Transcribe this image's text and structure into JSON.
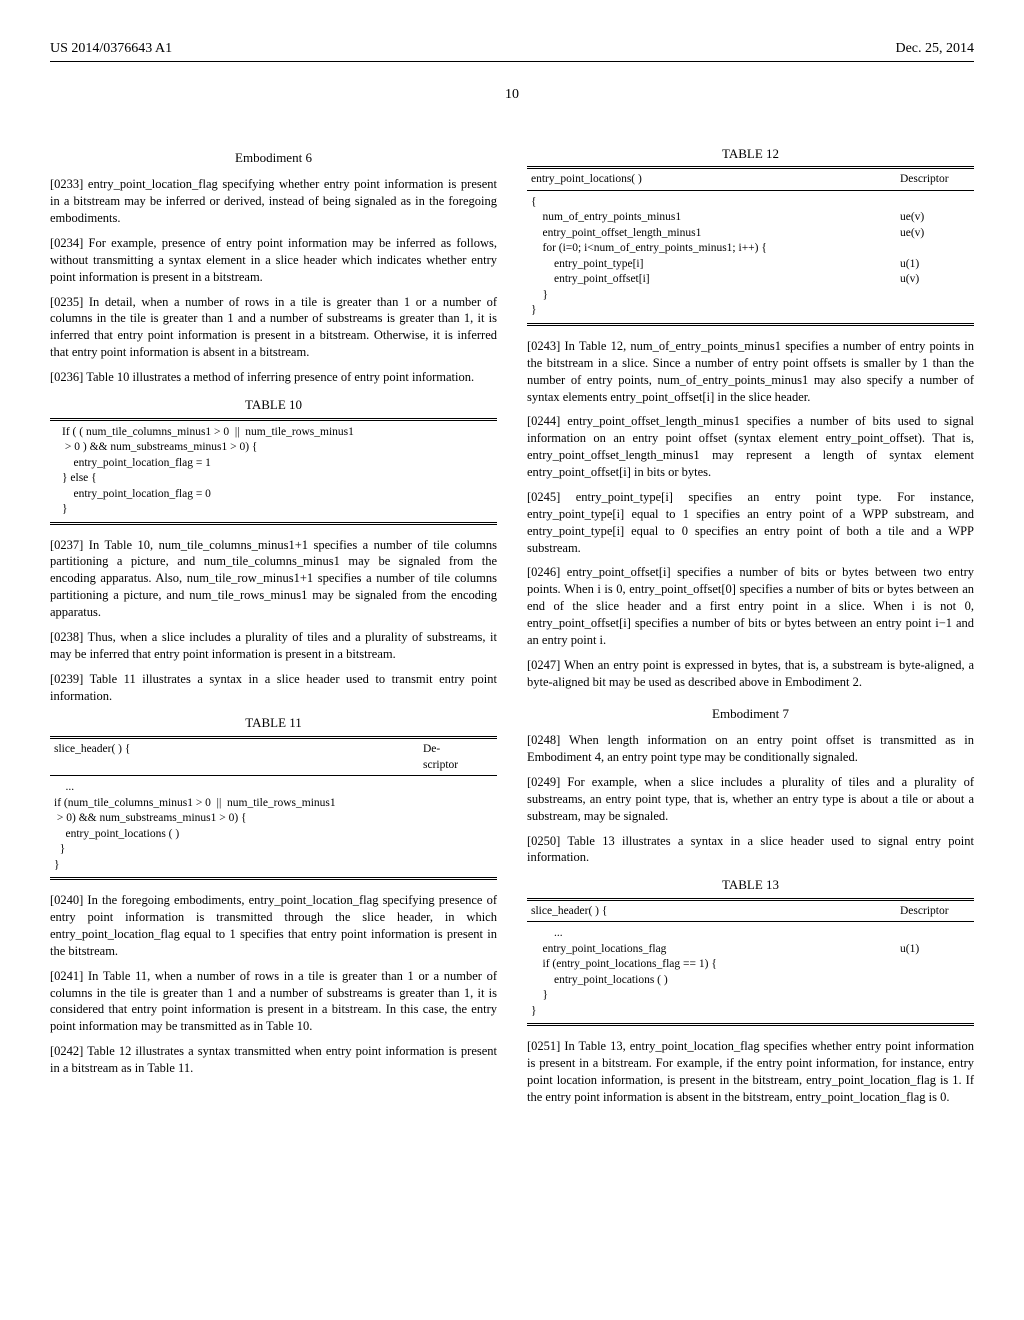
{
  "header": {
    "left": "US 2014/0376643 A1",
    "right": "Dec. 25, 2014"
  },
  "page_number": "10",
  "col1": {
    "emb6_title": "Embodiment 6",
    "p0233": "[0233]    entry_point_location_flag specifying whether entry point information is present in a bitstream may be inferred or derived, instead of being signaled as in the foregoing embodiments.",
    "p0234": "[0234]    For example, presence of entry point information may be inferred as follows, without transmitting a syntax element in a slice header which indicates whether entry point information is present in a bitstream.",
    "p0235": "[0235]    In detail, when a number of rows in a tile is greater than 1 or a number of columns in the tile is greater than 1 and a number of substreams is greater than 1, it is inferred that entry point information is present in a bitstream. Otherwise, it is inferred that entry point information is absent in a bitstream.",
    "p0236": "[0236]    Table 10 illustrates a method of inferring presence of entry point information.",
    "table10_caption": "TABLE 10",
    "table10_body": "If ( ( num_tile_columns_minus1 > 0  ||  num_tile_rows_minus1\n > 0 ) && num_substreams_minus1 > 0) {\n    entry_point_location_flag = 1\n} else {\n    entry_point_location_flag = 0\n}",
    "p0237": "[0237]    In Table 10, num_tile_columns_minus1+1 specifies a number of tile columns partitioning a picture, and num_tile_columns_minus1 may be signaled from the encoding apparatus. Also, num_tile_row_minus1+1 specifies a number of tile columns partitioning a picture, and num_tile_rows_minus1 may be signaled from the encoding apparatus.",
    "p0238": "[0238]    Thus, when a slice includes a plurality of tiles and a plurality of substreams, it may be inferred that entry point information is present in a bitstream.",
    "p0239": "[0239]    Table 11 illustrates a syntax in a slice header used to transmit entry point information.",
    "table11_caption": "TABLE 11",
    "table11_hdr_syntax": "slice_header( ) {",
    "table11_hdr_desc": "De-\nscriptor",
    "table11_body": "    ...\nif (num_tile_columns_minus1 > 0  ||  num_tile_rows_minus1\n > 0) && num_substreams_minus1 > 0) {\n    entry_point_locations ( )\n  }\n}",
    "p0240": "[0240]    In the foregoing embodiments, entry_point_location_flag specifying presence of entry point information is transmitted through the slice header, in which entry_point_location_flag equal to 1 specifies that entry point information is present in the bitstream.",
    "p0241": "[0241]    In Table 11, when a number of rows in a tile is greater than 1 or a number of columns in the tile is greater than 1 and a number of substreams is greater than 1, it is considered that entry point information is present in a bitstream. In this case, the entry point information may be transmitted as in Table 10.",
    "p0242": "[0242]    Table 12 illustrates a syntax transmitted when entry point information is present in a bitstream as in Table 11."
  },
  "col2": {
    "table12_caption": "TABLE 12",
    "table12_hdr_syntax": "entry_point_locations( )",
    "table12_hdr_desc": "Descriptor",
    "table12_rows": [
      {
        "s": "{",
        "d": ""
      },
      {
        "s": "    num_of_entry_points_minus1",
        "d": "ue(v)"
      },
      {
        "s": "    entry_point_offset_length_minus1",
        "d": "ue(v)"
      },
      {
        "s": "    for (i=0; i<num_of_entry_points_minus1; i++) {",
        "d": ""
      },
      {
        "s": "        entry_point_type[i]",
        "d": "u(1)"
      },
      {
        "s": "        entry_point_offset[i]",
        "d": "u(v)"
      },
      {
        "s": "    }",
        "d": ""
      },
      {
        "s": "}",
        "d": ""
      }
    ],
    "p0243": "[0243]    In Table 12, num_of_entry_points_minus1 specifies a number of entry points in the bitstream in a slice. Since a number of entry point offsets is smaller by 1 than the number of entry points, num_of_entry_points_minus1 may also specify a number of syntax elements entry_point_offset[i] in the slice header.",
    "p0244": "[0244]    entry_point_offset_length_minus1 specifies a number of bits used to signal information on an entry point offset (syntax element entry_point_offset). That is, entry_point_offset_length_minus1 may represent a length of syntax element entry_point_offset[i] in bits or bytes.",
    "p0245": "[0245]    entry_point_type[i] specifies an entry point type. For instance, entry_point_type[i] equal to 1 specifies an entry point of a WPP substream, and entry_point_type[i] equal to 0 specifies an entry point of both a tile and a WPP substream.",
    "p0246": "[0246]    entry_point_offset[i] specifies a number of bits or bytes between two entry points. When i is 0, entry_point_offset[0] specifies a number of bits or bytes between an end of the slice header and a first entry point in a slice. When i is not 0, entry_point_offset[i] specifies a number of bits or bytes between an entry point i−1 and an entry point i.",
    "p0247": "[0247]    When an entry point is expressed in bytes, that is, a substream is byte-aligned, a byte-aligned bit may be used as described above in Embodiment 2.",
    "emb7_title": "Embodiment 7",
    "p0248": "[0248]    When length information on an entry point offset is transmitted as in Embodiment 4, an entry point type may be conditionally signaled.",
    "p0249": "[0249]    For example, when a slice includes a plurality of tiles and a plurality of substreams, an entry point type, that is, whether an entry type is about a tile or about a substream, may be signaled.",
    "p0250": "[0250]    Table 13 illustrates a syntax in a slice header used to signal entry point information.",
    "table13_caption": "TABLE 13",
    "table13_hdr_syntax": "slice_header( ) {",
    "table13_hdr_desc": "Descriptor",
    "table13_rows": [
      {
        "s": "        ...",
        "d": ""
      },
      {
        "s": "    entry_point_locations_flag",
        "d": "u(1)"
      },
      {
        "s": "    if (entry_point_locations_flag == 1) {",
        "d": ""
      },
      {
        "s": "        entry_point_locations ( )",
        "d": ""
      },
      {
        "s": "    }",
        "d": ""
      },
      {
        "s": "}",
        "d": ""
      }
    ],
    "p0251": "[0251]    In Table 13, entry_point_location_flag specifies whether entry point information is present in a bitstream. For example, if the entry point information, for instance, entry point location information, is present in the bitstream, entry_point_location_flag is 1. If the entry point information is absent in the bitstream, entry_point_location_flag is 0."
  }
}
